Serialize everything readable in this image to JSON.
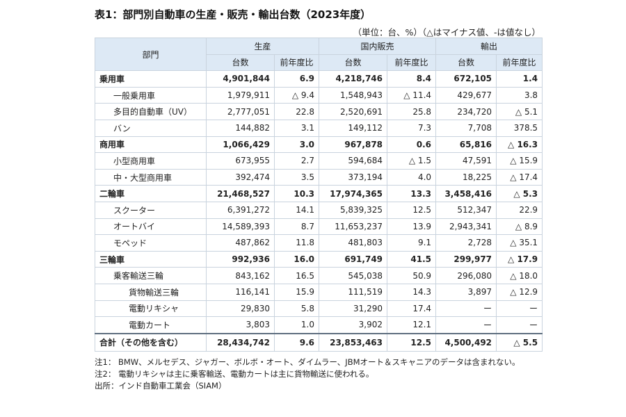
{
  "title": "表1：部門別自動車の生産・販売・輸出台数（2023年度）",
  "unit_note": "（単位：台、%）（△はマイナス値、-は値なし）",
  "headers": {
    "division": "部門",
    "production": "生産",
    "domestic": "国内販売",
    "export": "輸出",
    "units": "台数",
    "yoy": "前年度比"
  },
  "rows": [
    {
      "label": "乗用車",
      "level": 0,
      "values": [
        "4,901,844",
        "6.9",
        "4,218,746",
        "8.4",
        "672,105",
        "1.4"
      ]
    },
    {
      "label": "一般乗用車",
      "level": 1,
      "values": [
        "1,979,911",
        "△ 9.4",
        "1,548,943",
        "△ 11.4",
        "429,677",
        "3.8"
      ]
    },
    {
      "label": "多目的自動車（UV）",
      "level": 1,
      "values": [
        "2,777,051",
        "22.8",
        "2,520,691",
        "25.8",
        "234,720",
        "△ 5.1"
      ]
    },
    {
      "label": "バン",
      "level": 1,
      "values": [
        "144,882",
        "3.1",
        "149,112",
        "7.3",
        "7,708",
        "378.5"
      ]
    },
    {
      "label": "商用車",
      "level": 0,
      "values": [
        "1,066,429",
        "3.0",
        "967,878",
        "0.6",
        "65,816",
        "△ 16.3"
      ]
    },
    {
      "label": "小型商用車",
      "level": 1,
      "values": [
        "673,955",
        "2.7",
        "594,684",
        "△ 1.5",
        "47,591",
        "△ 15.9"
      ]
    },
    {
      "label": "中・大型商用車",
      "level": 1,
      "values": [
        "392,474",
        "3.5",
        "373,194",
        "4.0",
        "18,225",
        "△ 17.4"
      ]
    },
    {
      "label": "二輪車",
      "level": 0,
      "values": [
        "21,468,527",
        "10.3",
        "17,974,365",
        "13.3",
        "3,458,416",
        "△ 5.3"
      ]
    },
    {
      "label": "スクーター",
      "level": 1,
      "values": [
        "6,391,272",
        "14.1",
        "5,839,325",
        "12.5",
        "512,347",
        "22.9"
      ]
    },
    {
      "label": "オートバイ",
      "level": 1,
      "values": [
        "14,589,393",
        "8.7",
        "11,653,237",
        "13.9",
        "2,943,341",
        "△ 8.9"
      ]
    },
    {
      "label": "モペッド",
      "level": 1,
      "values": [
        "487,862",
        "11.8",
        "481,803",
        "9.1",
        "2,728",
        "△ 35.1"
      ]
    },
    {
      "label": "三輪車",
      "level": 0,
      "values": [
        "992,936",
        "16.0",
        "691,749",
        "41.5",
        "299,977",
        "△ 17.9"
      ]
    },
    {
      "label": "乗客輸送三輪",
      "level": 1,
      "values": [
        "843,162",
        "16.5",
        "545,038",
        "50.9",
        "296,080",
        "△ 18.0"
      ]
    },
    {
      "label": "貨物輸送三輪",
      "level": 2,
      "values": [
        "116,141",
        "15.9",
        "111,519",
        "14.3",
        "3,897",
        "△ 12.9"
      ]
    },
    {
      "label": "電動リキシャ",
      "level": 2,
      "values": [
        "29,830",
        "5.8",
        "31,290",
        "17.4",
        "ー",
        "ー"
      ]
    },
    {
      "label": "電動カート",
      "level": 2,
      "values": [
        "3,803",
        "1.0",
        "3,902",
        "12.1",
        "ー",
        "ー"
      ]
    }
  ],
  "total": {
    "label": "合計（その他を含む）",
    "values": [
      "28,434,742",
      "9.6",
      "23,853,463",
      "12.5",
      "4,500,492",
      "△ 5.5"
    ]
  },
  "notes": [
    "注1： BMW、メルセデス、ジャガー、ボルボ・オート、ダイムラー、JBMオート＆スキャニアのデータは含まれない。",
    "注2： 電動リキシャは主に乗客輸送、電動カートは主に貨物輸送に使われる。",
    "出所：インド自動車工業会（SIAM）"
  ]
}
